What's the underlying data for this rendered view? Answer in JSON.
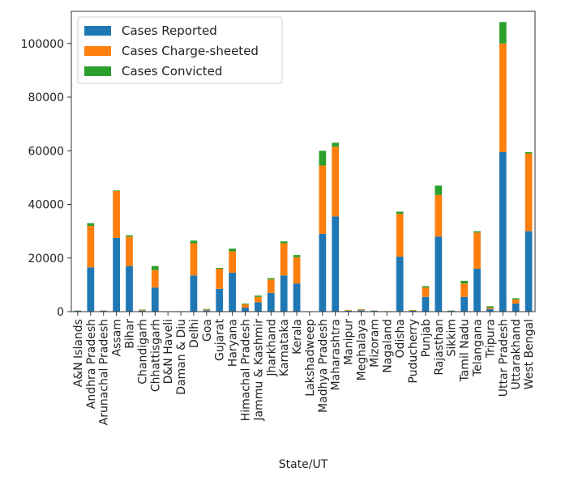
{
  "chart_data": {
    "type": "bar",
    "stacked": true,
    "title": "",
    "xlabel": "State/UT",
    "ylabel": "",
    "ylim": [
      0,
      112000
    ],
    "yticks": [
      0,
      20000,
      40000,
      60000,
      80000,
      100000
    ],
    "grid": false,
    "legend_position": "top-left",
    "categories": [
      "A&N Islands",
      "Andhra Pradesh",
      "Arunachal Pradesh",
      "Assam",
      "Bihar",
      "Chandigarh",
      "Chhattisgarh",
      "D&N Haveli",
      "Daman & Diu",
      "Delhi",
      "Goa",
      "Gujarat",
      "Haryana",
      "Himachal Pradesh",
      "Jammu & Kashmir",
      "Jharkhand",
      "Karnataka",
      "Kerala",
      "Lakshadweep",
      "Madhya Pradesh",
      "Maharashtra",
      "Manipur",
      "Meghalaya",
      "Mizoram",
      "Nagaland",
      "Odisha",
      "Puducherry",
      "Punjab",
      "Rajasthan",
      "Sikkim",
      "Tamil Nadu",
      "Telangana",
      "Tripura",
      "Uttar Pradesh",
      "Uttarakhand",
      "West Bengal"
    ],
    "series": [
      {
        "name": "Cases Reported",
        "color": "#1f77b4",
        "values": [
          300,
          16500,
          300,
          27500,
          17000,
          400,
          9000,
          100,
          100,
          13500,
          500,
          8500,
          14500,
          1500,
          3500,
          7000,
          13500,
          10500,
          100,
          29000,
          35500,
          300,
          500,
          300,
          100,
          20500,
          300,
          5500,
          28000,
          300,
          5500,
          16000,
          1000,
          59500,
          3000,
          30000
        ]
      },
      {
        "name": "Cases Charge-sheeted",
        "color": "#ff7f0e",
        "values": [
          100,
          15500,
          100,
          17500,
          11000,
          300,
          6500,
          50,
          50,
          12000,
          300,
          7500,
          8000,
          1200,
          2000,
          5000,
          12000,
          9800,
          50,
          25500,
          26000,
          200,
          300,
          100,
          100,
          16000,
          200,
          3500,
          15500,
          100,
          5000,
          13500,
          500,
          40500,
          1500,
          29000
        ]
      },
      {
        "name": "Cases Convicted",
        "color": "#2ca02c",
        "values": [
          50,
          1000,
          50,
          200,
          500,
          100,
          1500,
          20,
          20,
          1000,
          200,
          300,
          1000,
          300,
          500,
          500,
          700,
          800,
          10,
          5500,
          1500,
          50,
          100,
          50,
          10,
          800,
          100,
          500,
          3500,
          50,
          1000,
          500,
          500,
          8000,
          500,
          500
        ]
      }
    ]
  }
}
